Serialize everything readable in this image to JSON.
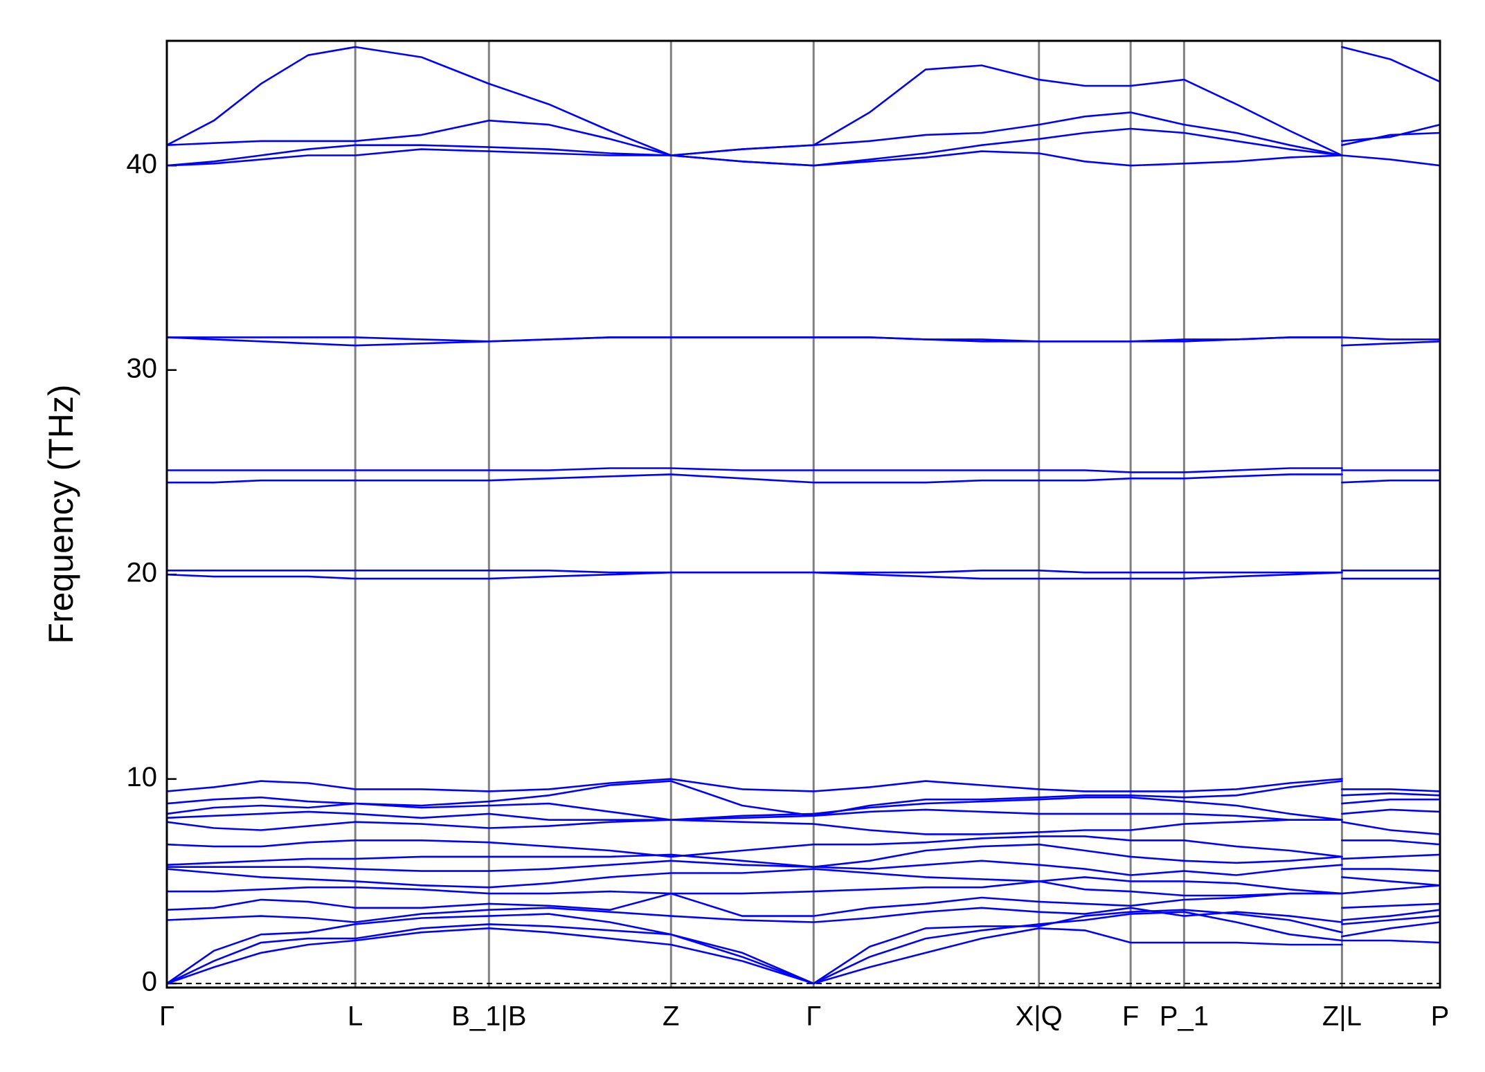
{
  "chart_data": {
    "type": "line",
    "ylabel": "Frequency (THz)",
    "color": "#0000ff",
    "xlim": [
      0,
      1
    ],
    "ylim": [
      -0.2,
      46.1
    ],
    "yticks": [
      0,
      10,
      20,
      30,
      40
    ],
    "xticks": [
      {
        "value": 0,
        "label": "Γ"
      },
      {
        "value": 0.148,
        "label": "L"
      },
      {
        "value": 0.253,
        "label": "B_1|B"
      },
      {
        "value": 0.396,
        "label": "Z"
      },
      {
        "value": 0.508,
        "label": "Γ"
      },
      {
        "value": 0.685,
        "label": "X|Q"
      },
      {
        "value": 0.757,
        "label": "F"
      },
      {
        "value": 0.799,
        "label": "P_1"
      },
      {
        "value": 0.923,
        "label": "Z|L"
      },
      {
        "value": 1,
        "label": "P"
      }
    ],
    "xgrid": true,
    "zero_line": true,
    "x": [
      0,
      0.037,
      0.074,
      0.111,
      0.148,
      0.2,
      0.253,
      0.3,
      0.348,
      0.396,
      0.452,
      0.508,
      0.552,
      0.596,
      0.64,
      0.685,
      0.721,
      0.757,
      0.799,
      0.84,
      0.882,
      0.923,
      0.923,
      0.923,
      0.961,
      1
    ],
    "series": [
      {
        "values": [
          41,
          42.2,
          44,
          45.4,
          45.8,
          45.3,
          44,
          43,
          41.7,
          40.5,
          40.8,
          41,
          42.6,
          44.7,
          44.9,
          44.2,
          43.9,
          43.9,
          44.2,
          43,
          41.7,
          40.5,
          null,
          45.8,
          45.2,
          44.1
        ]
      },
      {
        "values": [
          41,
          41.1,
          41.2,
          41.2,
          41.2,
          41.5,
          42.2,
          42,
          41.3,
          40.5,
          40.8,
          41,
          41.2,
          41.5,
          41.6,
          42,
          42.4,
          42.6,
          42,
          41.6,
          41,
          40.5,
          null,
          41.2,
          41.4,
          42
        ]
      },
      {
        "values": [
          40,
          40.2,
          40.5,
          40.8,
          41,
          41,
          40.9,
          40.8,
          40.6,
          40.5,
          40.2,
          40,
          40.3,
          40.6,
          41,
          41.3,
          41.6,
          41.8,
          41.6,
          41.2,
          40.8,
          40.5,
          null,
          41,
          41.5,
          41.6
        ]
      },
      {
        "values": [
          40,
          40.1,
          40.3,
          40.5,
          40.5,
          40.8,
          40.7,
          40.6,
          40.5,
          40.5,
          40.2,
          40,
          40.2,
          40.4,
          40.7,
          40.6,
          40.2,
          40,
          40.1,
          40.2,
          40.4,
          40.5,
          null,
          40.5,
          40.3,
          40
        ]
      },
      {
        "values": [
          31.6,
          31.6,
          31.6,
          31.6,
          31.6,
          31.5,
          31.4,
          31.5,
          31.6,
          31.6,
          31.6,
          31.6,
          31.6,
          31.5,
          31.5,
          31.4,
          31.4,
          31.4,
          31.5,
          31.5,
          31.6,
          31.6,
          null,
          31.6,
          31.5,
          31.5
        ]
      },
      {
        "values": [
          31.6,
          31.5,
          31.4,
          31.3,
          31.2,
          31.3,
          31.4,
          31.5,
          31.6,
          31.6,
          31.6,
          31.6,
          31.6,
          31.5,
          31.4,
          31.4,
          31.4,
          31.4,
          31.4,
          31.5,
          31.6,
          31.6,
          null,
          31.2,
          31.3,
          31.4
        ]
      },
      {
        "values": [
          25.1,
          25.1,
          25.1,
          25.1,
          25.1,
          25.1,
          25.1,
          25.1,
          25.2,
          25.2,
          25.1,
          25.1,
          25.1,
          25.1,
          25.1,
          25.1,
          25.1,
          25.0,
          25.0,
          25.1,
          25.2,
          25.2,
          null,
          25.1,
          25.1,
          25.1
        ]
      },
      {
        "values": [
          24.5,
          24.5,
          24.6,
          24.6,
          24.6,
          24.6,
          24.6,
          24.7,
          24.8,
          24.9,
          24.7,
          24.5,
          24.5,
          24.5,
          24.6,
          24.6,
          24.6,
          24.7,
          24.7,
          24.8,
          24.9,
          24.9,
          null,
          24.5,
          24.6,
          24.6
        ]
      },
      {
        "values": [
          20.2,
          20.2,
          20.2,
          20.2,
          20.2,
          20.2,
          20.2,
          20.2,
          20.1,
          20.1,
          20.1,
          20.1,
          20.1,
          20.1,
          20.2,
          20.2,
          20.1,
          20.1,
          20.1,
          20.1,
          20.1,
          20.1,
          null,
          20.2,
          20.2,
          20.2
        ]
      },
      {
        "values": [
          20.0,
          19.9,
          19.9,
          19.9,
          19.8,
          19.8,
          19.8,
          19.9,
          20.0,
          20.1,
          20.1,
          20.1,
          20.0,
          19.9,
          19.8,
          19.8,
          19.8,
          19.8,
          19.8,
          19.9,
          20.0,
          20.1,
          null,
          19.8,
          19.8,
          19.8
        ]
      },
      {
        "values": [
          9.4,
          9.6,
          9.9,
          9.8,
          9.5,
          9.5,
          9.4,
          9.5,
          9.8,
          10.0,
          9.5,
          9.4,
          9.6,
          9.9,
          9.7,
          9.5,
          9.4,
          9.4,
          9.4,
          9.5,
          9.8,
          10.0,
          null,
          9.5,
          9.5,
          9.4
        ]
      },
      {
        "values": [
          8.8,
          9.0,
          9.1,
          8.9,
          8.8,
          8.7,
          8.9,
          9.2,
          9.7,
          9.9,
          8.7,
          8.2,
          8.7,
          9.0,
          9.0,
          9.1,
          9.2,
          9.2,
          9.1,
          9.2,
          9.6,
          9.9,
          null,
          9.2,
          9.3,
          9.2
        ]
      },
      {
        "values": [
          8.3,
          8.6,
          8.7,
          8.6,
          8.8,
          8.6,
          8.7,
          8.8,
          8.4,
          8.0,
          8.2,
          8.3,
          8.6,
          8.8,
          8.9,
          9.0,
          9.1,
          9.1,
          8.9,
          8.7,
          8.3,
          8.0,
          null,
          8.8,
          9.0,
          9.0
        ]
      },
      {
        "values": [
          8.1,
          8.2,
          8.3,
          8.4,
          8.3,
          8.1,
          8.3,
          8.0,
          8.0,
          8.0,
          8.1,
          8.2,
          8.4,
          8.5,
          8.4,
          8.3,
          8.3,
          8.3,
          8.3,
          8.2,
          8.0,
          8.0,
          null,
          8.3,
          8.5,
          8.4
        ]
      },
      {
        "values": [
          7.9,
          7.6,
          7.5,
          7.7,
          7.9,
          7.8,
          7.6,
          7.7,
          7.9,
          8.0,
          7.9,
          7.8,
          7.5,
          7.3,
          7.3,
          7.4,
          7.5,
          7.5,
          7.8,
          7.9,
          8.0,
          8.0,
          null,
          7.9,
          7.5,
          7.3
        ]
      },
      {
        "values": [
          6.8,
          6.7,
          6.7,
          6.9,
          7.0,
          7.0,
          6.9,
          6.7,
          6.5,
          6.2,
          6.5,
          6.8,
          6.8,
          6.9,
          7.1,
          7.2,
          7.2,
          7.0,
          7.0,
          6.7,
          6.5,
          6.2,
          null,
          7.0,
          7.0,
          6.8
        ]
      },
      {
        "values": [
          5.8,
          5.9,
          6.0,
          6.1,
          6.1,
          6.2,
          6.2,
          6.2,
          6.2,
          6.3,
          6.0,
          5.7,
          6.0,
          6.5,
          6.7,
          6.8,
          6.5,
          6.2,
          6.0,
          5.9,
          6.0,
          6.2,
          null,
          6.1,
          6.2,
          6.3
        ]
      },
      {
        "values": [
          5.7,
          5.7,
          5.7,
          5.7,
          5.6,
          5.5,
          5.5,
          5.6,
          5.8,
          6.0,
          5.8,
          5.7,
          5.6,
          5.8,
          6.0,
          5.8,
          5.6,
          5.3,
          5.5,
          5.3,
          5.6,
          5.8,
          null,
          5.6,
          5.6,
          5.5
        ]
      },
      {
        "values": [
          5.6,
          5.4,
          5.2,
          5.1,
          5.0,
          4.8,
          4.7,
          4.9,
          5.2,
          5.4,
          5.4,
          5.6,
          5.4,
          5.2,
          5.1,
          5.0,
          5.2,
          5.0,
          5.0,
          4.9,
          4.6,
          4.4,
          null,
          5.2,
          5.0,
          4.8
        ]
      },
      {
        "values": [
          4.5,
          4.5,
          4.6,
          4.7,
          4.7,
          4.6,
          4.4,
          4.4,
          4.5,
          4.4,
          4.4,
          4.5,
          4.6,
          4.7,
          4.7,
          5.0,
          4.6,
          4.5,
          4.3,
          4.3,
          4.4,
          4.4,
          null,
          4.4,
          4.6,
          4.8
        ]
      },
      {
        "values": [
          3.6,
          3.7,
          4.1,
          4.0,
          3.7,
          3.7,
          3.9,
          3.8,
          3.6,
          4.4,
          3.3,
          3.3,
          3.7,
          3.9,
          4.2,
          4.0,
          3.9,
          3.8,
          4.1,
          4.2,
          4.4,
          4.4,
          null,
          3.7,
          3.8,
          3.9
        ]
      },
      {
        "values": [
          3.1,
          3.2,
          3.3,
          3.2,
          3.0,
          3.4,
          3.6,
          3.7,
          3.5,
          3.3,
          3.1,
          3.0,
          3.2,
          3.5,
          3.7,
          3.5,
          3.4,
          3.7,
          3.3,
          3.5,
          3.3,
          3.0,
          null,
          3.1,
          3.3,
          3.6
        ]
      },
      {
        "values": [
          0,
          1.6,
          2.4,
          2.5,
          2.9,
          3.2,
          3.3,
          3.4,
          3.0,
          2.4,
          1.5,
          0,
          1.8,
          2.7,
          2.8,
          2.8,
          3.3,
          3.5,
          3.6,
          3.4,
          3.1,
          2.5,
          null,
          2.9,
          3.1,
          3.3
        ]
      },
      {
        "values": [
          0,
          1.1,
          2.0,
          2.2,
          2.2,
          2.7,
          2.9,
          2.8,
          2.6,
          2.4,
          1.3,
          0,
          1.3,
          2.2,
          2.6,
          2.9,
          3.1,
          3.4,
          3.5,
          3.0,
          2.4,
          2.1,
          null,
          2.3,
          2.7,
          3.0
        ]
      },
      {
        "values": [
          0,
          0.8,
          1.5,
          1.9,
          2.1,
          2.5,
          2.7,
          2.5,
          2.2,
          1.9,
          1.1,
          0,
          0.8,
          1.5,
          2.2,
          2.7,
          2.6,
          2.0,
          2.0,
          2.0,
          1.9,
          1.9,
          null,
          2.1,
          2.1,
          2.0
        ]
      }
    ]
  }
}
